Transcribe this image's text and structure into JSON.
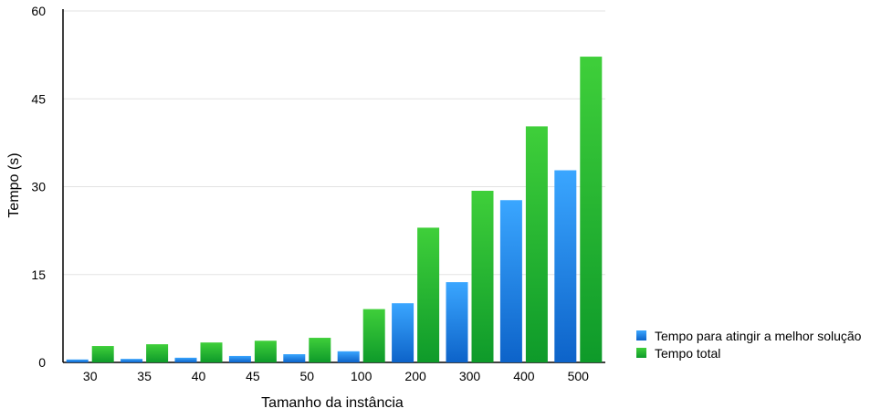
{
  "chart_data": {
    "type": "bar",
    "categories": [
      "30",
      "35",
      "40",
      "45",
      "50",
      "100",
      "200",
      "300",
      "400",
      "500"
    ],
    "series": [
      {
        "name": "Tempo para atingir a melhor solução",
        "values": [
          0.5,
          0.6,
          0.8,
          1.1,
          1.4,
          1.9,
          10.1,
          13.7,
          27.7,
          32.8
        ],
        "color": "#1e8ae8"
      },
      {
        "name": "Tempo total",
        "values": [
          2.8,
          3.1,
          3.4,
          3.7,
          4.2,
          9.1,
          23.0,
          29.3,
          40.3,
          52.2
        ],
        "color": "#1fbe2c"
      }
    ],
    "xlabel": "Tamanho da instância",
    "ylabel": "Tempo (s)",
    "ylim": [
      0,
      60
    ],
    "yticks": [
      0,
      15,
      30,
      45,
      60
    ],
    "grid": true,
    "legend_position": "right-bottom"
  }
}
